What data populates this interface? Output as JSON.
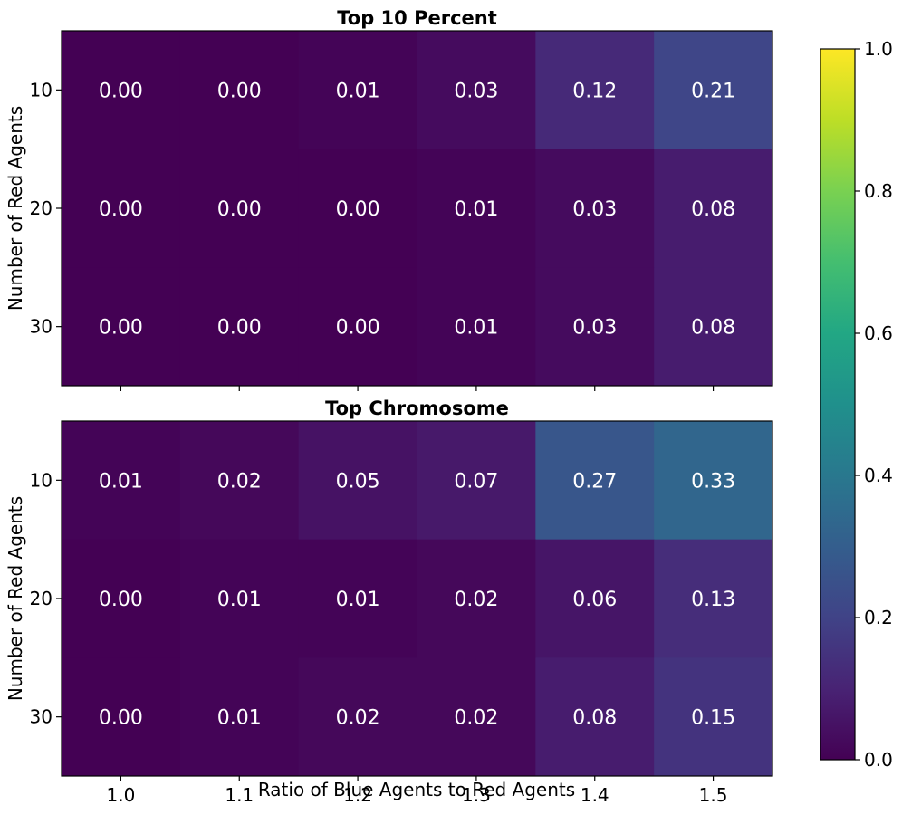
{
  "chart_data": {
    "type": "heatmap",
    "colormap": "viridis",
    "x_label": "Ratio of Blue Agents to Red Agents",
    "x_ticks": [
      "1.0",
      "1.1",
      "1.2",
      "1.3",
      "1.4",
      "1.5"
    ],
    "colorbar": {
      "range": [
        0.0,
        1.0
      ],
      "ticks": [
        "0.0",
        "0.2",
        "0.4",
        "0.6",
        "0.8",
        "1.0"
      ]
    },
    "panels": [
      {
        "title": "Top 10 Percent",
        "y_label": "Number of Red Agents",
        "y_ticks": [
          "10",
          "20",
          "30"
        ],
        "values": [
          [
            0.0,
            0.0,
            0.01,
            0.03,
            0.12,
            0.21
          ],
          [
            0.0,
            0.0,
            0.0,
            0.01,
            0.03,
            0.08
          ],
          [
            0.0,
            0.0,
            0.0,
            0.01,
            0.03,
            0.08
          ]
        ]
      },
      {
        "title": "Top Chromosome",
        "y_label": "Number of Red Agents",
        "y_ticks": [
          "10",
          "20",
          "30"
        ],
        "values": [
          [
            0.01,
            0.02,
            0.05,
            0.07,
            0.27,
            0.33
          ],
          [
            0.0,
            0.01,
            0.01,
            0.02,
            0.06,
            0.13
          ],
          [
            0.0,
            0.01,
            0.02,
            0.02,
            0.08,
            0.15
          ]
        ]
      }
    ]
  }
}
